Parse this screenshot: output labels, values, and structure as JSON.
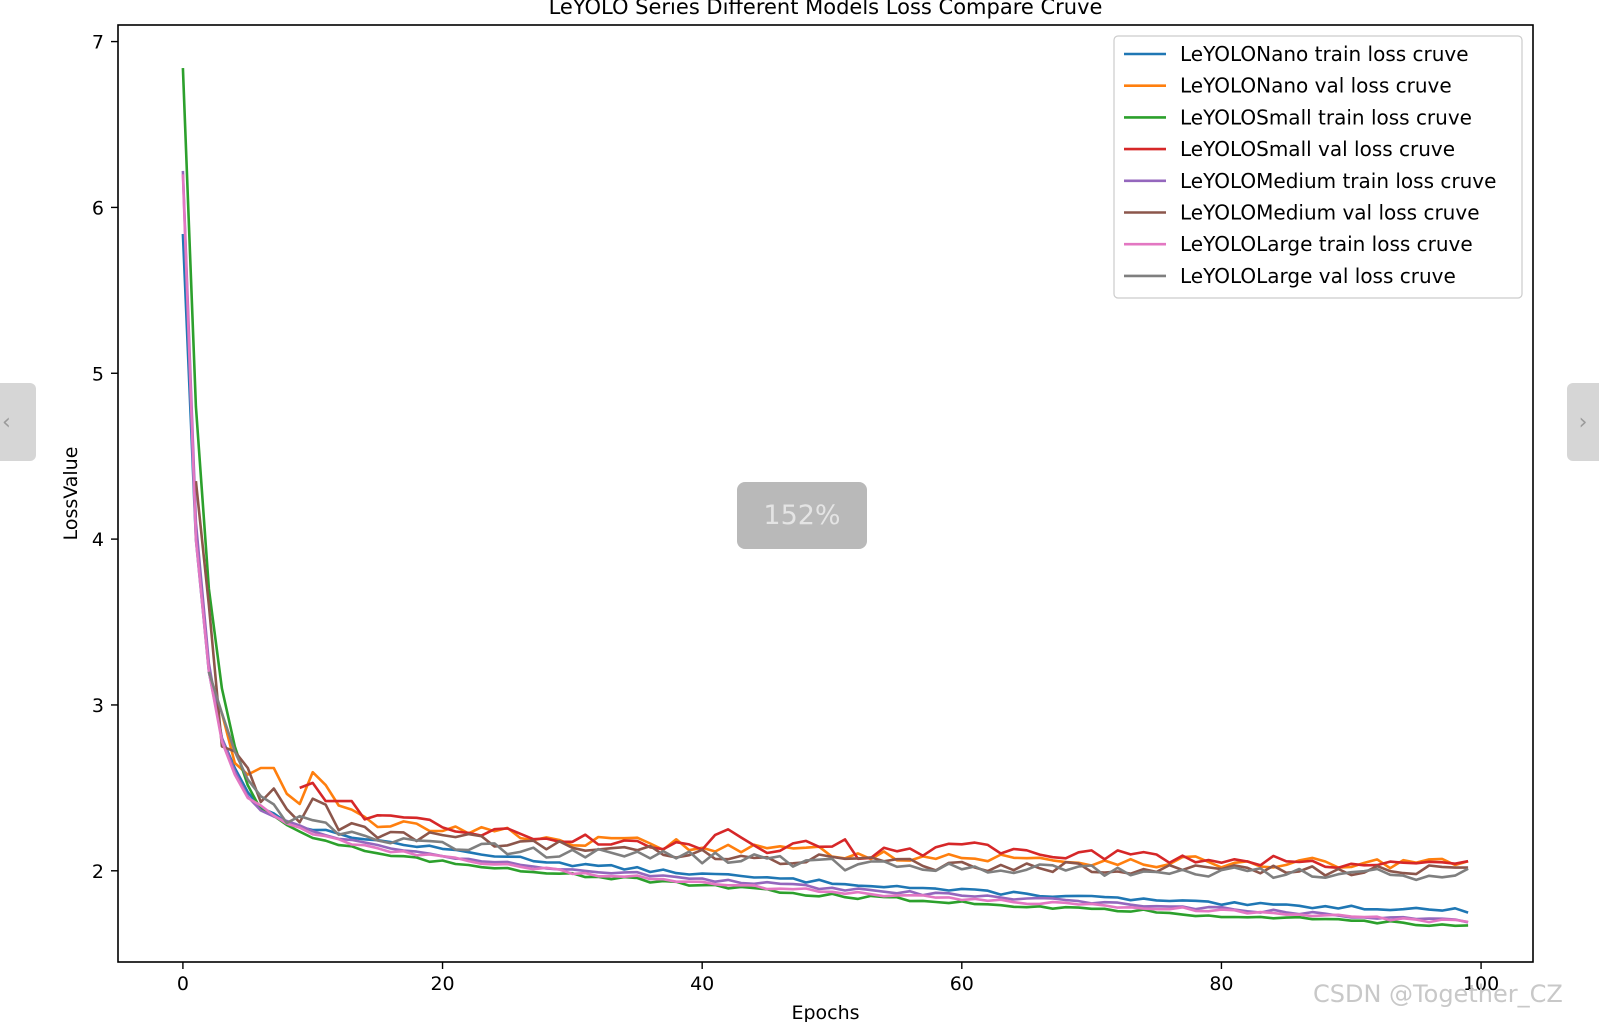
{
  "chart_data": {
    "type": "line",
    "title": "LeYOLO Series Different Models Loss Compare Cruve",
    "xlabel": "Epochs",
    "ylabel": "LossValue",
    "xlim": [
      -5,
      104
    ],
    "ylim": [
      1.45,
      7.1
    ],
    "xticks": [
      0,
      20,
      40,
      60,
      80,
      100
    ],
    "yticks": [
      2,
      3,
      4,
      5,
      6,
      7
    ],
    "grid": false,
    "legend_position": "top-right",
    "series": [
      {
        "name": "LeYOLONano train loss cruve",
        "color": "#1f77b4",
        "start": 0,
        "anchors": [
          [
            0,
            5.84
          ],
          [
            1,
            4.0
          ],
          [
            2,
            3.2
          ],
          [
            3,
            2.8
          ],
          [
            4,
            2.62
          ],
          [
            5,
            2.48
          ],
          [
            6,
            2.38
          ],
          [
            8,
            2.3
          ],
          [
            10,
            2.25
          ],
          [
            15,
            2.18
          ],
          [
            20,
            2.13
          ],
          [
            30,
            2.04
          ],
          [
            40,
            1.98
          ],
          [
            50,
            1.93
          ],
          [
            60,
            1.88
          ],
          [
            70,
            1.84
          ],
          [
            80,
            1.8
          ],
          [
            90,
            1.78
          ],
          [
            99,
            1.76
          ]
        ]
      },
      {
        "name": "LeYOLONano val loss cruve",
        "color": "#ff7f0e",
        "start": 3,
        "anchors": [
          [
            3,
            2.95
          ],
          [
            4,
            2.65
          ],
          [
            5,
            2.58
          ],
          [
            6,
            2.62
          ],
          [
            7,
            2.62
          ],
          [
            8,
            2.48
          ],
          [
            9,
            2.42
          ],
          [
            10,
            2.62
          ],
          [
            12,
            2.38
          ],
          [
            15,
            2.27
          ],
          [
            20,
            2.27
          ],
          [
            30,
            2.18
          ],
          [
            40,
            2.15
          ],
          [
            50,
            2.11
          ],
          [
            60,
            2.08
          ],
          [
            70,
            2.06
          ],
          [
            80,
            2.05
          ],
          [
            90,
            2.04
          ],
          [
            99,
            2.04
          ]
        ]
      },
      {
        "name": "LeYOLOSmall train loss cruve",
        "color": "#2ca02c",
        "start": 0,
        "anchors": [
          [
            0,
            6.84
          ],
          [
            1,
            4.8
          ],
          [
            2,
            3.7
          ],
          [
            3,
            3.1
          ],
          [
            4,
            2.75
          ],
          [
            5,
            2.52
          ],
          [
            6,
            2.38
          ],
          [
            8,
            2.28
          ],
          [
            10,
            2.2
          ],
          [
            15,
            2.1
          ],
          [
            20,
            2.05
          ],
          [
            30,
            1.98
          ],
          [
            40,
            1.91
          ],
          [
            50,
            1.85
          ],
          [
            60,
            1.81
          ],
          [
            70,
            1.77
          ],
          [
            80,
            1.73
          ],
          [
            90,
            1.7
          ],
          [
            99,
            1.67
          ]
        ]
      },
      {
        "name": "LeYOLOSmall val loss cruve",
        "color": "#d62728",
        "start": 9,
        "anchors": [
          [
            9,
            2.5
          ],
          [
            10,
            2.53
          ],
          [
            11,
            2.42
          ],
          [
            13,
            2.42
          ],
          [
            14,
            2.32
          ],
          [
            16,
            2.3
          ],
          [
            20,
            2.27
          ],
          [
            28,
            2.2
          ],
          [
            35,
            2.17
          ],
          [
            40,
            2.15
          ],
          [
            42,
            2.24
          ],
          [
            44,
            2.12
          ],
          [
            50,
            2.18
          ],
          [
            51,
            2.22
          ],
          [
            52,
            2.1
          ],
          [
            60,
            2.14
          ],
          [
            70,
            2.1
          ],
          [
            80,
            2.07
          ],
          [
            90,
            2.05
          ],
          [
            99,
            2.04
          ]
        ]
      },
      {
        "name": "LeYOLOMedium train loss cruve",
        "color": "#9467bd",
        "start": 0,
        "anchors": [
          [
            0,
            6.22
          ],
          [
            1,
            4.1
          ],
          [
            2,
            3.25
          ],
          [
            3,
            2.8
          ],
          [
            4,
            2.6
          ],
          [
            5,
            2.45
          ],
          [
            6,
            2.36
          ],
          [
            8,
            2.3
          ],
          [
            10,
            2.24
          ],
          [
            15,
            2.15
          ],
          [
            20,
            2.09
          ],
          [
            30,
            2.01
          ],
          [
            40,
            1.95
          ],
          [
            50,
            1.89
          ],
          [
            60,
            1.85
          ],
          [
            70,
            1.81
          ],
          [
            80,
            1.77
          ],
          [
            90,
            1.73
          ],
          [
            99,
            1.7
          ]
        ]
      },
      {
        "name": "LeYOLOMedium val loss cruve",
        "color": "#8c564b",
        "start": 1,
        "anchors": [
          [
            1,
            4.35
          ],
          [
            2,
            3.6
          ],
          [
            3,
            2.75
          ],
          [
            4,
            2.72
          ],
          [
            5,
            2.62
          ],
          [
            6,
            2.42
          ],
          [
            7,
            2.5
          ],
          [
            8,
            2.35
          ],
          [
            9,
            2.32
          ],
          [
            10,
            2.45
          ],
          [
            12,
            2.28
          ],
          [
            15,
            2.22
          ],
          [
            20,
            2.2
          ],
          [
            30,
            2.14
          ],
          [
            40,
            2.1
          ],
          [
            50,
            2.06
          ],
          [
            60,
            2.03
          ],
          [
            70,
            2.02
          ],
          [
            80,
            2.01
          ],
          [
            90,
            2.0
          ],
          [
            99,
            2.0
          ]
        ]
      },
      {
        "name": "LeYOLOLarge train loss cruve",
        "color": "#e377c2",
        "start": 0,
        "anchors": [
          [
            0,
            6.2
          ],
          [
            1,
            4.0
          ],
          [
            2,
            3.2
          ],
          [
            3,
            2.78
          ],
          [
            4,
            2.58
          ],
          [
            5,
            2.44
          ],
          [
            6,
            2.4
          ],
          [
            8,
            2.28
          ],
          [
            10,
            2.22
          ],
          [
            15,
            2.13
          ],
          [
            20,
            2.08
          ],
          [
            30,
            1.99
          ],
          [
            40,
            1.93
          ],
          [
            50,
            1.87
          ],
          [
            60,
            1.83
          ],
          [
            70,
            1.79
          ],
          [
            80,
            1.76
          ],
          [
            90,
            1.72
          ],
          [
            99,
            1.69
          ]
        ]
      },
      {
        "name": "LeYOLOLarge val loss cruve",
        "color": "#7f7f7f",
        "start": 2,
        "anchors": [
          [
            2,
            3.2
          ],
          [
            3,
            2.95
          ],
          [
            4,
            2.72
          ],
          [
            5,
            2.55
          ],
          [
            6,
            2.45
          ],
          [
            7,
            2.4
          ],
          [
            8,
            2.32
          ],
          [
            10,
            2.32
          ],
          [
            12,
            2.25
          ],
          [
            15,
            2.18
          ],
          [
            20,
            2.17
          ],
          [
            30,
            2.1
          ],
          [
            40,
            2.08
          ],
          [
            50,
            2.04
          ],
          [
            60,
            2.02
          ],
          [
            70,
            2.0
          ],
          [
            80,
            1.99
          ],
          [
            90,
            1.98
          ],
          [
            99,
            1.98
          ]
        ]
      }
    ]
  },
  "overlay": {
    "zoom_level": "152%",
    "watermark": "CSDN @Together_CZ",
    "prev_arrow": "‹",
    "next_arrow": "›"
  }
}
